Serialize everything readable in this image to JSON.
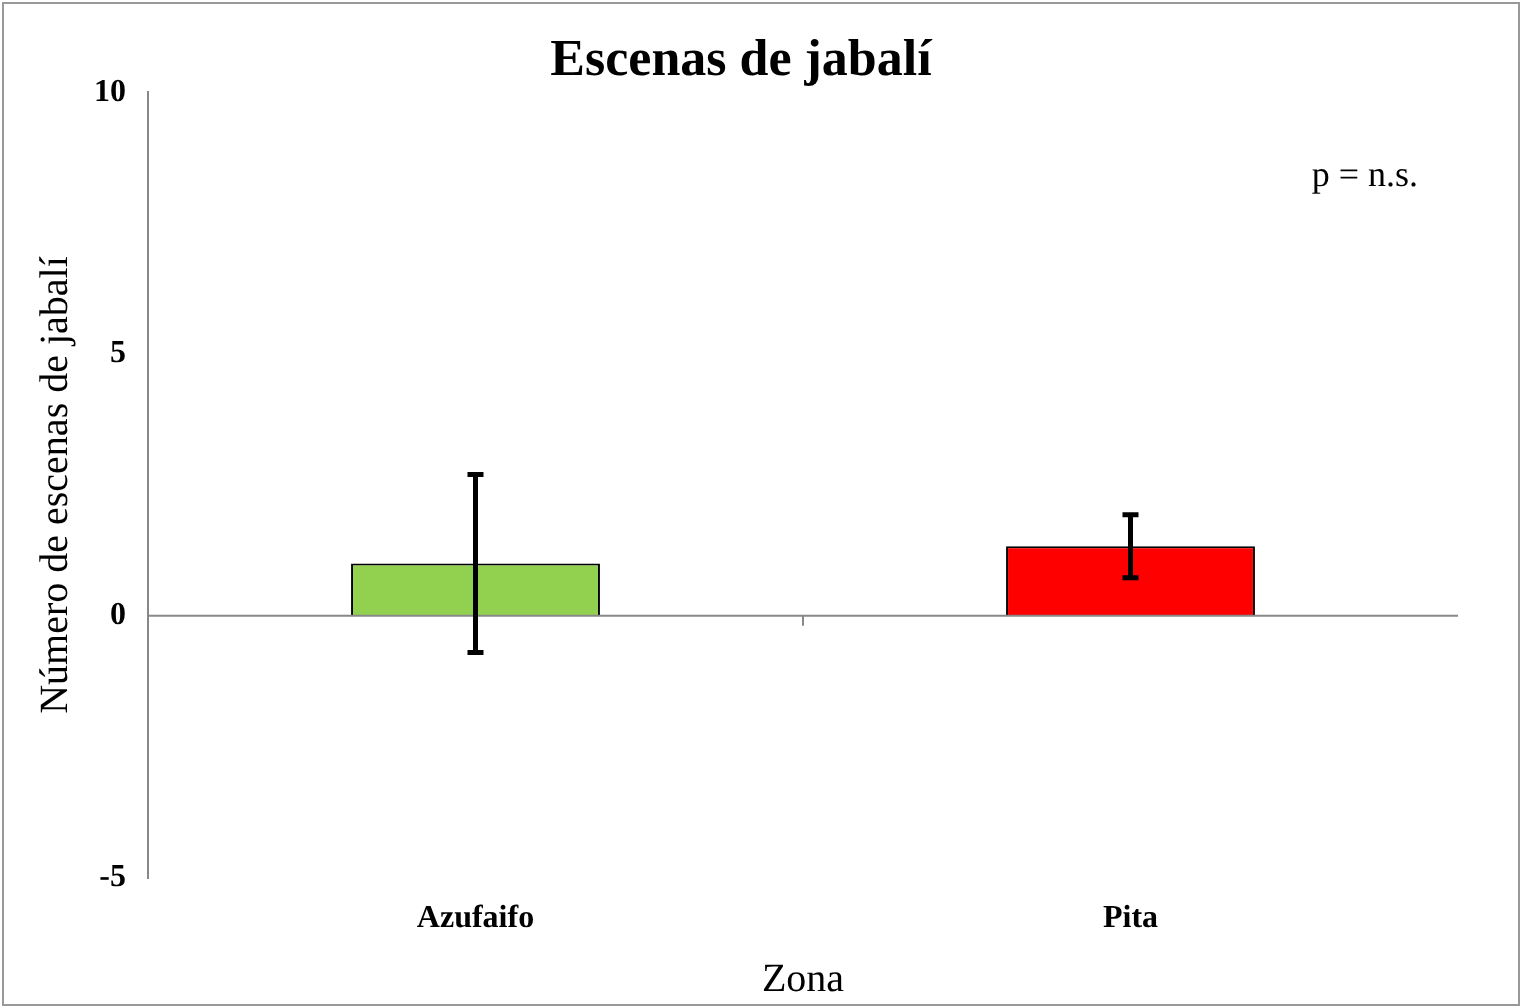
{
  "chart_data": {
    "type": "bar",
    "title": "Escenas de jabalí",
    "xlabel": "Zona",
    "ylabel": "Número de escenas de jabalí",
    "categories": [
      "Azufaifo",
      "Pita"
    ],
    "values": [
      1.0,
      1.33
    ],
    "errors": [
      1.7,
      0.6
    ],
    "colors": [
      "#92d050",
      "#ff0000"
    ],
    "ref_lines": [
      {
        "axis": "y",
        "value": 0,
        "color": "#888888"
      }
    ],
    "ylim": [
      -5,
      10
    ],
    "yticks": [
      -5,
      0,
      5,
      10
    ],
    "grid": false,
    "legend": false,
    "annotations": [
      "p = n.s."
    ]
  }
}
